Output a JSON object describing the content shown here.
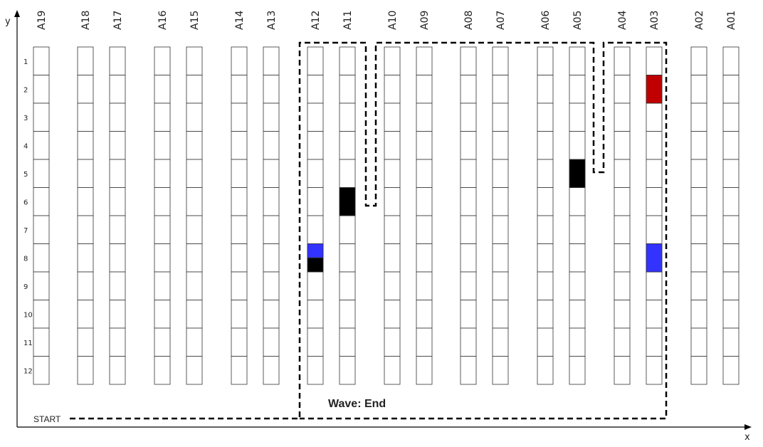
{
  "axes": {
    "x_label": "x",
    "y_label": "y"
  },
  "aisles": [
    "A19",
    "A18",
    "A17",
    "A16",
    "A15",
    "A14",
    "A13",
    "A12",
    "A11",
    "A10",
    "A09",
    "A08",
    "A07",
    "A06",
    "A05",
    "A04",
    "A03",
    "A02",
    "A01"
  ],
  "rows": [
    "1",
    "2",
    "3",
    "4",
    "5",
    "6",
    "7",
    "8",
    "9",
    "10",
    "11",
    "12"
  ],
  "start_label": "START",
  "wave_label": "Wave: End",
  "colors": {
    "red": "#c00000",
    "blue": "#3333ff",
    "black": "#000000",
    "path": "#000000"
  },
  "highlighted_cells": [
    {
      "aisle": "A03",
      "row": 2,
      "color": "red"
    },
    {
      "aisle": "A05",
      "row": 5,
      "color": "black"
    },
    {
      "aisle": "A11",
      "row": 6,
      "color": "black"
    },
    {
      "aisle": "A12",
      "row": 8,
      "color": "split-blue-black"
    },
    {
      "aisle": "A03",
      "row": 8,
      "color": "blue"
    }
  ]
}
